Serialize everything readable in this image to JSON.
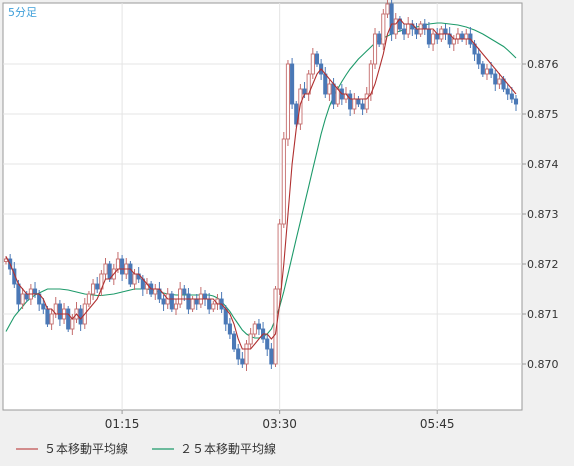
{
  "chart_data": {
    "type": "candlestick",
    "title": "5分足",
    "x_tick_labels": [
      "01:15",
      "03:30",
      "05:45"
    ],
    "y_tick_labels": [
      "0.870",
      "0.871",
      "0.872",
      "0.873",
      "0.874",
      "0.875",
      "0.876"
    ],
    "ylim": [
      0.8695,
      0.877
    ],
    "grid": true,
    "legend_position": "bottom",
    "up_color": "#c46c6c",
    "down_color": "#4a78b6",
    "ma5_color": "#b03030",
    "ma25_color": "#1d9a6a",
    "legend": [
      {
        "label": "５本移動平均線",
        "color": "#c05050"
      },
      {
        "label": "２５本移動平均線",
        "color": "#1d9a6a"
      }
    ],
    "closes": [
      0.8721,
      0.8719,
      0.8716,
      0.8712,
      0.8714,
      0.8713,
      0.8715,
      0.8714,
      0.8712,
      0.8711,
      0.8708,
      0.871,
      0.8712,
      0.8709,
      0.8711,
      0.8707,
      0.8709,
      0.8711,
      0.8708,
      0.8712,
      0.8714,
      0.8716,
      0.8715,
      0.8718,
      0.872,
      0.8717,
      0.8719,
      0.8721,
      0.8718,
      0.872,
      0.8716,
      0.8718,
      0.8717,
      0.8715,
      0.8716,
      0.8714,
      0.8715,
      0.8713,
      0.8712,
      0.8714,
      0.8711,
      0.8712,
      0.8715,
      0.8714,
      0.8711,
      0.8713,
      0.8712,
      0.8714,
      0.8713,
      0.8711,
      0.8712,
      0.8713,
      0.8711,
      0.8708,
      0.8706,
      0.8703,
      0.8701,
      0.87,
      0.8704,
      0.8706,
      0.8708,
      0.8707,
      0.8705,
      0.8703,
      0.87,
      0.8715,
      0.8728,
      0.8745,
      0.876,
      0.8752,
      0.8748,
      0.8755,
      0.8754,
      0.8758,
      0.8762,
      0.876,
      0.8758,
      0.8754,
      0.8756,
      0.8752,
      0.8755,
      0.8753,
      0.8754,
      0.8751,
      0.8753,
      0.8752,
      0.8751,
      0.8754,
      0.876,
      0.8766,
      0.8764,
      0.877,
      0.8772,
      0.8766,
      0.8769,
      0.8767,
      0.8766,
      0.8768,
      0.8767,
      0.8766,
      0.8768,
      0.8767,
      0.8764,
      0.8766,
      0.8765,
      0.8767,
      0.8766,
      0.8764,
      0.8765,
      0.8766,
      0.8765,
      0.8766,
      0.8764,
      0.8762,
      0.876,
      0.8758,
      0.8759,
      0.8758,
      0.8756,
      0.8757,
      0.8755,
      0.8754,
      0.8753,
      0.8752
    ],
    "ma5": [
      0.87215,
      0.872,
      0.8718,
      0.8716,
      0.8715,
      0.8714,
      0.8714,
      0.8714,
      0.8714,
      0.8713,
      0.8711,
      0.8711,
      0.871,
      0.871,
      0.871,
      0.871,
      0.8709,
      0.871,
      0.8709,
      0.871,
      0.8711,
      0.8712,
      0.8713,
      0.8715,
      0.8717,
      0.8717,
      0.8718,
      0.8719,
      0.8719,
      0.8719,
      0.8719,
      0.8718,
      0.8718,
      0.8717,
      0.8716,
      0.8715,
      0.8715,
      0.8715,
      0.8714,
      0.8713,
      0.8713,
      0.8713,
      0.8713,
      0.8713,
      0.8713,
      0.8713,
      0.8713,
      0.8713,
      0.8713,
      0.8713,
      0.8713,
      0.8712,
      0.8712,
      0.8711,
      0.871,
      0.8708,
      0.8705,
      0.8703,
      0.8703,
      0.8703,
      0.8704,
      0.8705,
      0.8706,
      0.8706,
      0.8705,
      0.8706,
      0.8712,
      0.872,
      0.873,
      0.874,
      0.8747,
      0.8752,
      0.8754,
      0.8754,
      0.8756,
      0.8758,
      0.8759,
      0.8758,
      0.8757,
      0.8756,
      0.8755,
      0.8754,
      0.8754,
      0.8753,
      0.8753,
      0.8753,
      0.8753,
      0.8753,
      0.8754,
      0.8756,
      0.8759,
      0.8762,
      0.8766,
      0.8768,
      0.8768,
      0.8769,
      0.8768,
      0.8768,
      0.8768,
      0.8767,
      0.8767,
      0.8767,
      0.8767,
      0.8767,
      0.8766,
      0.8766,
      0.8766,
      0.8766,
      0.8765,
      0.8765,
      0.8765,
      0.8765,
      0.8765,
      0.8764,
      0.8763,
      0.8762,
      0.8761,
      0.876,
      0.8759,
      0.8758,
      0.8757,
      0.8756,
      0.8755,
      0.8754
    ],
    "ma25": [
      0.87065,
      0.8708,
      0.87095,
      0.87105,
      0.87115,
      0.87125,
      0.87132,
      0.87138,
      0.87142,
      0.87146,
      0.8715,
      0.8715,
      0.8715,
      0.8715,
      0.87149,
      0.87148,
      0.87146,
      0.87144,
      0.87142,
      0.8714,
      0.87139,
      0.87138,
      0.87137,
      0.87137,
      0.87138,
      0.87139,
      0.8714,
      0.87142,
      0.87144,
      0.87146,
      0.87148,
      0.8715,
      0.8715,
      0.8715,
      0.8715,
      0.87148,
      0.87146,
      0.87144,
      0.87142,
      0.8714,
      0.87139,
      0.87138,
      0.87138,
      0.87138,
      0.87138,
      0.87138,
      0.87138,
      0.87138,
      0.87138,
      0.87138,
      0.87136,
      0.87132,
      0.87125,
      0.87115,
      0.87105,
      0.87092,
      0.8708,
      0.87068,
      0.8706,
      0.87055,
      0.87052,
      0.87052,
      0.87055,
      0.8706,
      0.8707,
      0.8709,
      0.87115,
      0.87145,
      0.8718,
      0.87215,
      0.8725,
      0.87285,
      0.8732,
      0.87355,
      0.8739,
      0.87425,
      0.8746,
      0.8749,
      0.87515,
      0.87535,
      0.8755,
      0.87565,
      0.87578,
      0.8759,
      0.876,
      0.8761,
      0.87618,
      0.87626,
      0.87634,
      0.87642,
      0.87648,
      0.87652,
      0.87656,
      0.8766,
      0.87663,
      0.87666,
      0.87668,
      0.8767,
      0.87672,
      0.87674,
      0.87676,
      0.87678,
      0.8768,
      0.87681,
      0.87682,
      0.87682,
      0.87681,
      0.8768,
      0.87679,
      0.87678,
      0.87676,
      0.87674,
      0.87671,
      0.87668,
      0.87664,
      0.8766,
      0.87655,
      0.8765,
      0.87645,
      0.8764,
      0.87635,
      0.87628,
      0.8762,
      0.87612
    ]
  }
}
